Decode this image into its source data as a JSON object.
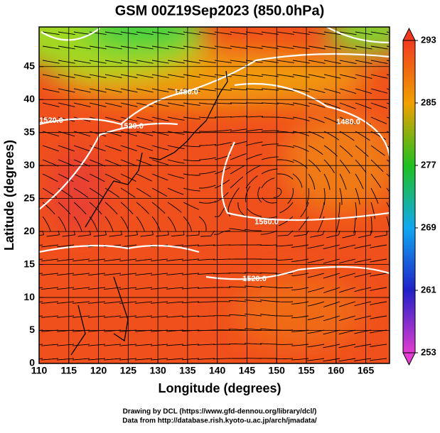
{
  "chart_data": {
    "type": "map",
    "title": "GSM 00Z19Sep2023 (850.0hPa)",
    "x_label": "Longitude (degrees)",
    "y_label": "Latitude  (degrees)",
    "xlim": [
      110,
      169
    ],
    "xticks": [
      110,
      115,
      120,
      125,
      130,
      135,
      140,
      145,
      150,
      155,
      160,
      165
    ],
    "ylim": [
      0,
      51
    ],
    "yticks": [
      0,
      5,
      10,
      15,
      20,
      25,
      30,
      35,
      40,
      45
    ],
    "grid": true,
    "colorbar": {
      "lim": [
        253,
        293
      ],
      "ticks": [
        253,
        261,
        269,
        277,
        285,
        293
      ]
    },
    "contour_labels": [
      "1520.0",
      "1520.0",
      "1480.0",
      "1480.0",
      "1560.0",
      "1520.0"
    ]
  },
  "footer": [
    "Drawing by DCL (https://www.gfd-dennou.org/library/dcl/)",
    "Data from http://database.rish.kyoto-u.ac.jp/arch/jmadata/"
  ]
}
